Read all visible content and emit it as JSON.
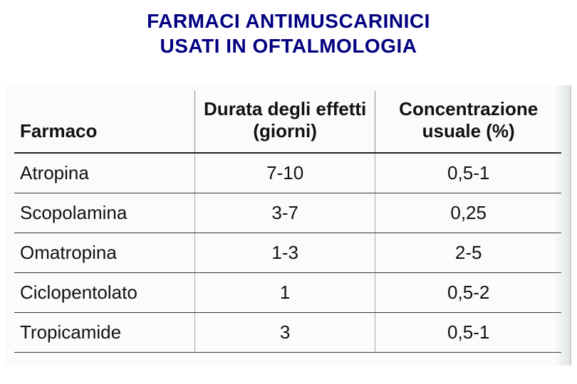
{
  "title": {
    "line1": "FARMACI ANTIMUSCARINICI",
    "line2": "USATI IN OFTALMOLOGIA",
    "color": "#000080",
    "fontsize": 28,
    "fontweight": "bold"
  },
  "table": {
    "type": "table",
    "background_color": "#fbfbfa",
    "border_color": "#222222",
    "cell_border_color": "#333333",
    "col_sep_color": "#888888",
    "text_color": "#111111",
    "header_fontsize": 26,
    "body_fontsize": 26,
    "columns": [
      {
        "label": "Farmaco",
        "align": "left",
        "width_pct": 33,
        "bold": true
      },
      {
        "label": "Durata degli effetti (giorni)",
        "align": "center",
        "width_pct": 33,
        "bold": true
      },
      {
        "label": "Concentrazione usuale (%)",
        "align": "center",
        "width_pct": 34,
        "bold": true
      }
    ],
    "rows": [
      {
        "farmaco": "Atropina",
        "durata": "7-10",
        "conc": "0,5-1"
      },
      {
        "farmaco": "Scopolamina",
        "durata": "3-7",
        "conc": "0,25"
      },
      {
        "farmaco": "Omatropina",
        "durata": "1-3",
        "conc": "2-5"
      },
      {
        "farmaco": "Ciclopentolato",
        "durata": "1",
        "conc": "0,5-2"
      },
      {
        "farmaco": "Tropicamide",
        "durata": "3",
        "conc": "0,5-1"
      }
    ]
  }
}
